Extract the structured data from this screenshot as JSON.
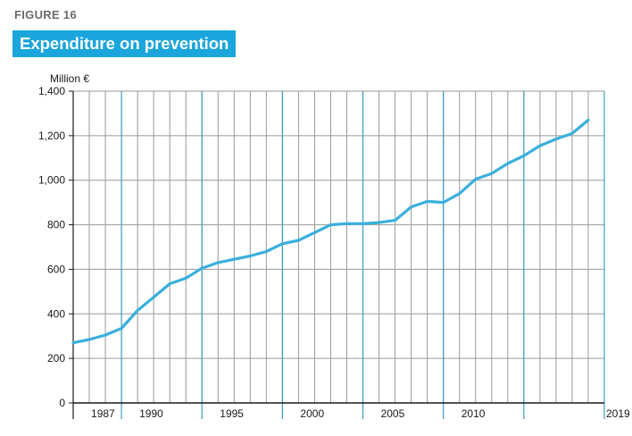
{
  "figure_label": "FIGURE 16",
  "title": "Expenditure on prevention",
  "colors": {
    "title_bg": "#1aa6dc",
    "line": "#3ab0dc",
    "grid_minor": "#9a9a9a",
    "grid_major": "#3aa0c0"
  },
  "chart_data": {
    "type": "line",
    "title": "Expenditure on prevention",
    "ylabel": "Million €",
    "xlabel": "",
    "ylim": [
      0,
      1400
    ],
    "xlim": [
      1986,
      2019
    ],
    "yticks": [
      0,
      200,
      400,
      600,
      800,
      1000,
      1200,
      1400
    ],
    "ytick_labels": [
      "0",
      "200",
      "400",
      "600",
      "800",
      "1,000",
      "1,200",
      "1,400"
    ],
    "xtick_labels": [
      {
        "x": 1987,
        "label": "1987"
      },
      {
        "x": 1990,
        "label": "1990"
      },
      {
        "x": 1995,
        "label": "1995"
      },
      {
        "x": 2000,
        "label": "2000"
      },
      {
        "x": 2005,
        "label": "2005"
      },
      {
        "x": 2010,
        "label": "2010"
      },
      {
        "x": 2019,
        "label": "2019"
      }
    ],
    "major_gridlines_x": [
      1989,
      1994,
      1999,
      2004,
      2009,
      2014
    ],
    "grid": true,
    "legend": "none",
    "series": [
      {
        "x": [
          1986,
          1987,
          1988,
          1989,
          1990,
          1991,
          1992,
          1993,
          1994,
          1995,
          1996,
          1997,
          1998,
          1999,
          2000,
          2001,
          2002,
          2003,
          2004,
          2005,
          2006,
          2007,
          2008,
          2009,
          2010,
          2011,
          2012,
          2013,
          2014,
          2015,
          2016,
          2017,
          2018
        ],
        "values": [
          270,
          285,
          305,
          335,
          415,
          475,
          535,
          560,
          605,
          630,
          645,
          660,
          680,
          715,
          730,
          765,
          800,
          805,
          805,
          810,
          820,
          880,
          905,
          900,
          940,
          1005,
          1030,
          1075,
          1110,
          1155,
          1185,
          1210,
          1270
        ]
      }
    ]
  }
}
